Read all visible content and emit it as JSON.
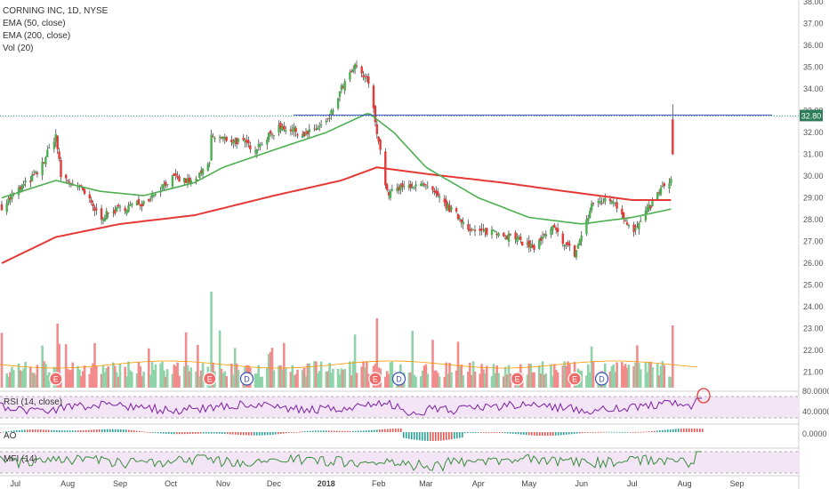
{
  "legend": {
    "title": "CORNING INC, 1D, NYSE",
    "ema50": "EMA (50, close)",
    "ema200": "EMA (200, close)",
    "vol": "Vol (20)"
  },
  "panels": {
    "rsi": "RSI (14, close)",
    "ao": "AO",
    "mfi": "MFI (14)"
  },
  "price_tag": "32.80",
  "indicator_scales": {
    "rsi_top": "80.0000",
    "rsi_mid": "40.0000",
    "ao": "0.0000"
  },
  "colors": {
    "up": "#26a69a",
    "down": "#ef5350",
    "ema50": "#4caf50",
    "ema200": "#e53935",
    "resistance": "#3f51b5",
    "rsi_fill": "#f3e5f5"
  },
  "events": [
    {
      "label": "E",
      "date": "2017-07-25"
    },
    {
      "label": "E",
      "date": "2017-10-24"
    },
    {
      "label": "D",
      "date": "2017-11-15"
    },
    {
      "label": "E",
      "date": "2018-01-30"
    },
    {
      "label": "D",
      "date": "2018-02-13"
    },
    {
      "label": "E",
      "date": "2018-04-24"
    },
    {
      "label": "E",
      "date": "2018-05-28"
    },
    {
      "label": "D",
      "date": "2018-06-13"
    }
  ],
  "chart_data": {
    "type": "candlestick",
    "title": "CORNING INC, 1D, NYSE",
    "x_ticks": [
      "Jul",
      "Aug",
      "Sep",
      "Oct",
      "Nov",
      "Dec",
      "2018",
      "Feb",
      "Mar",
      "Apr",
      "May",
      "Jun",
      "Jul",
      "Aug",
      "Sep"
    ],
    "y_ticks": [
      "38.00",
      "37.00",
      "36.00",
      "35.00",
      "34.00",
      "33.00",
      "32.00",
      "31.00",
      "30.00",
      "29.00",
      "28.00",
      "27.00",
      "26.00",
      "25.00",
      "24.00",
      "23.00",
      "22.00",
      "21.00"
    ],
    "ylim": [
      20.5,
      38.0
    ],
    "resistance_level": 32.8,
    "last_price": 32.8,
    "price_path": [
      {
        "date": "2017-06-23",
        "close": 28.6
      },
      {
        "date": "2017-07-05",
        "close": 29.5
      },
      {
        "date": "2017-07-15",
        "close": 30.2
      },
      {
        "date": "2017-07-25",
        "close": 31.9
      },
      {
        "date": "2017-07-28",
        "close": 30.0
      },
      {
        "date": "2017-08-10",
        "close": 29.3
      },
      {
        "date": "2017-08-20",
        "close": 28.1
      },
      {
        "date": "2017-09-01",
        "close": 28.5
      },
      {
        "date": "2017-09-15",
        "close": 28.8
      },
      {
        "date": "2017-10-01",
        "close": 29.9
      },
      {
        "date": "2017-10-15",
        "close": 29.7
      },
      {
        "date": "2017-10-24",
        "close": 30.6
      },
      {
        "date": "2017-10-25",
        "close": 31.8
      },
      {
        "date": "2017-11-10",
        "close": 31.6
      },
      {
        "date": "2017-11-20",
        "close": 31.3
      },
      {
        "date": "2017-12-05",
        "close": 32.3
      },
      {
        "date": "2017-12-20",
        "close": 31.9
      },
      {
        "date": "2018-01-02",
        "close": 32.5
      },
      {
        "date": "2018-01-10",
        "close": 34.0
      },
      {
        "date": "2018-01-18",
        "close": 35.0
      },
      {
        "date": "2018-01-26",
        "close": 34.3
      },
      {
        "date": "2018-01-31",
        "close": 32.1
      },
      {
        "date": "2018-02-06",
        "close": 29.2
      },
      {
        "date": "2018-02-20",
        "close": 29.6
      },
      {
        "date": "2018-03-01",
        "close": 29.5
      },
      {
        "date": "2018-03-15",
        "close": 28.5
      },
      {
        "date": "2018-03-30",
        "close": 27.4
      },
      {
        "date": "2018-04-10",
        "close": 27.5
      },
      {
        "date": "2018-04-24",
        "close": 27.1
      },
      {
        "date": "2018-05-04",
        "close": 26.7
      },
      {
        "date": "2018-05-15",
        "close": 27.6
      },
      {
        "date": "2018-05-28",
        "close": 26.4
      },
      {
        "date": "2018-06-08",
        "close": 28.8
      },
      {
        "date": "2018-06-20",
        "close": 28.9
      },
      {
        "date": "2018-07-02",
        "close": 27.4
      },
      {
        "date": "2018-07-10",
        "close": 28.4
      },
      {
        "date": "2018-07-17",
        "close": 29.3
      },
      {
        "date": "2018-07-24",
        "close": 29.8
      },
      {
        "date": "2018-07-25",
        "close": 31.0
      }
    ],
    "ema50": [
      {
        "date": "2017-06-23",
        "value": 29.0
      },
      {
        "date": "2017-07-25",
        "value": 29.8
      },
      {
        "date": "2017-08-20",
        "value": 29.3
      },
      {
        "date": "2017-09-15",
        "value": 29.1
      },
      {
        "date": "2017-10-15",
        "value": 29.7
      },
      {
        "date": "2017-11-01",
        "value": 30.4
      },
      {
        "date": "2017-12-01",
        "value": 31.2
      },
      {
        "date": "2018-01-01",
        "value": 32.0
      },
      {
        "date": "2018-01-26",
        "value": 32.9
      },
      {
        "date": "2018-02-10",
        "value": 32.0
      },
      {
        "date": "2018-03-01",
        "value": 30.4
      },
      {
        "date": "2018-04-01",
        "value": 29.0
      },
      {
        "date": "2018-05-01",
        "value": 28.1
      },
      {
        "date": "2018-06-01",
        "value": 27.8
      },
      {
        "date": "2018-07-01",
        "value": 28.1
      },
      {
        "date": "2018-07-25",
        "value": 28.5
      }
    ],
    "ema200": [
      {
        "date": "2017-06-23",
        "value": 26.0
      },
      {
        "date": "2017-07-25",
        "value": 27.2
      },
      {
        "date": "2017-09-01",
        "value": 27.8
      },
      {
        "date": "2017-10-15",
        "value": 28.2
      },
      {
        "date": "2017-12-01",
        "value": 29.1
      },
      {
        "date": "2018-01-10",
        "value": 29.8
      },
      {
        "date": "2018-01-31",
        "value": 30.4
      },
      {
        "date": "2018-03-01",
        "value": 30.1
      },
      {
        "date": "2018-04-15",
        "value": 29.7
      },
      {
        "date": "2018-06-01",
        "value": 29.2
      },
      {
        "date": "2018-07-01",
        "value": 28.9
      },
      {
        "date": "2018-07-25",
        "value": 28.9
      }
    ],
    "volume_notes": "volume bars shown on secondary pane; highest spikes on earnings days (2017-10-25, 2018-01-31, 2018-07-25)",
    "rsi_range": [
      0,
      100
    ],
    "rsi_bands": [
      30,
      70
    ],
    "ao_zero": 0,
    "grid": false,
    "legend_position": "top-left"
  }
}
